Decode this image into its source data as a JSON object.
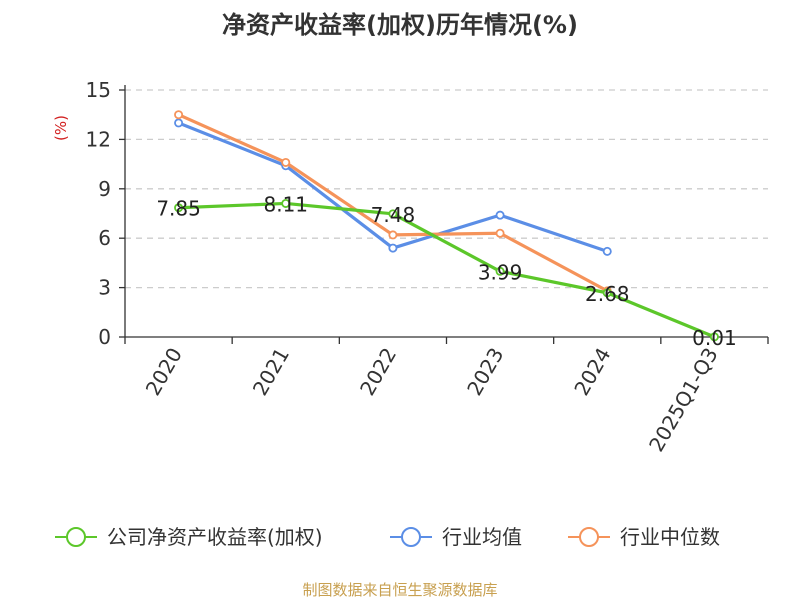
{
  "chart_data": {
    "type": "line",
    "title": "净资产收益率(加权)历年情况(%)",
    "ylabel": "(%)",
    "xlabel": "",
    "categories": [
      "2020",
      "2021",
      "2022",
      "2023",
      "2024",
      "2025Q1-Q3"
    ],
    "ylim": [
      0,
      15
    ],
    "yticks": [
      0,
      3,
      6,
      9,
      12,
      15
    ],
    "grid": true,
    "legend_position": "bottom",
    "series": [
      {
        "name": "公司净资产收益率(加权)",
        "color": "#5cc72a",
        "values": [
          7.85,
          8.11,
          7.48,
          3.99,
          2.68,
          0.01
        ],
        "labels": [
          "7.85",
          "8.11",
          "7.48",
          "3.99",
          "2.68",
          "0.01"
        ]
      },
      {
        "name": "行业均值",
        "color": "#5b8ee6",
        "values": [
          13.0,
          10.4,
          5.4,
          7.4,
          5.2,
          null
        ]
      },
      {
        "name": "行业中位数",
        "color": "#f5935a",
        "values": [
          13.5,
          10.6,
          6.2,
          6.3,
          2.8,
          null
        ]
      }
    ]
  },
  "source_text": "制图数据来自恒生聚源数据库",
  "colors": {
    "ylabel": "#d22020",
    "source": "#c8a050",
    "axis": "#333333",
    "grid": "#cccccc"
  }
}
